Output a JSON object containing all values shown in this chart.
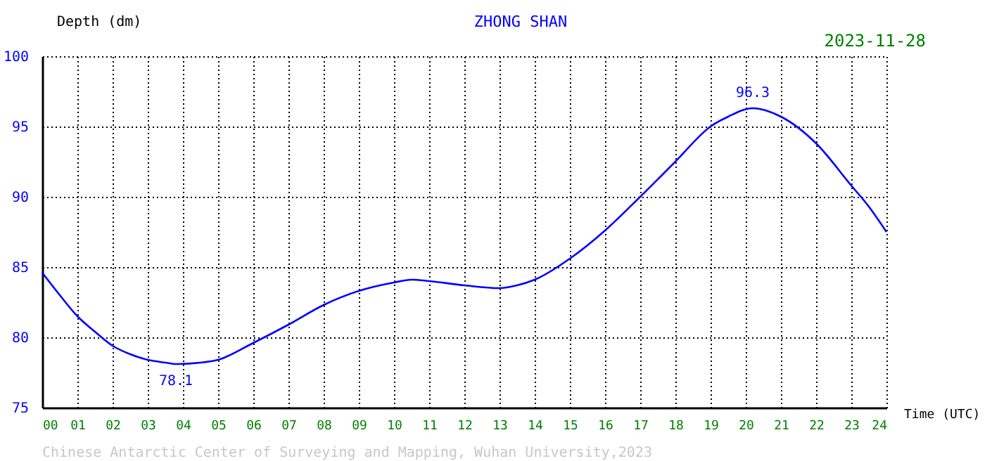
{
  "chart_data": {
    "type": "line",
    "title": "ZHONG SHAN",
    "xlabel": "Time (UTC)",
    "ylabel": "Depth (dm)",
    "annotations": [
      "2023-11-28",
      "Chinese Antarctic Center of Surveying and Mapping, Wuhan University,2023"
    ],
    "x": [
      0,
      0.5,
      1,
      1.5,
      2,
      2.5,
      3,
      3.5,
      3.8,
      4.5,
      5,
      6,
      7,
      8,
      9,
      10,
      10.5,
      11,
      12,
      13,
      13.5,
      14,
      15,
      16,
      17,
      18,
      19,
      19.5,
      20.2,
      21,
      22,
      23,
      23.5,
      24
    ],
    "series": [
      {
        "color": "#0000ff",
        "values": [
          84.6,
          83.0,
          81.5,
          80.4,
          79.4,
          78.8,
          78.4,
          78.2,
          78.1,
          78.2,
          78.4,
          79.6,
          80.9,
          82.3,
          83.3,
          83.9,
          84.1,
          84.0,
          83.7,
          83.5,
          83.7,
          84.1,
          85.6,
          87.6,
          90.0,
          92.5,
          95.0,
          95.7,
          96.3,
          95.7,
          93.8,
          90.8,
          89.3,
          87.5
        ],
        "value_labels": [
          null,
          null,
          null,
          null,
          null,
          null,
          null,
          null,
          "78.1",
          null,
          null,
          null,
          null,
          null,
          null,
          null,
          null,
          null,
          null,
          null,
          null,
          null,
          null,
          null,
          null,
          null,
          null,
          null,
          "96.3",
          null,
          null,
          null,
          null,
          null
        ]
      }
    ],
    "xlim": [
      0,
      24
    ],
    "xticks": [
      {
        "value": 0,
        "label": "00"
      },
      {
        "value": 1,
        "label": "01"
      },
      {
        "value": 2,
        "label": "02"
      },
      {
        "value": 3,
        "label": "03"
      },
      {
        "value": 4,
        "label": "04"
      },
      {
        "value": 5,
        "label": "05"
      },
      {
        "value": 6,
        "label": "06"
      },
      {
        "value": 7,
        "label": "07"
      },
      {
        "value": 8,
        "label": "08"
      },
      {
        "value": 9,
        "label": "09"
      },
      10,
      11,
      12,
      13,
      14,
      15,
      16,
      17,
      18,
      19,
      20,
      21,
      22,
      23,
      24
    ],
    "ylim": [
      75,
      100
    ],
    "yticks": [
      75,
      80,
      85,
      90,
      95,
      100
    ],
    "grid": true,
    "marker": "none",
    "line_style": "solid"
  }
}
